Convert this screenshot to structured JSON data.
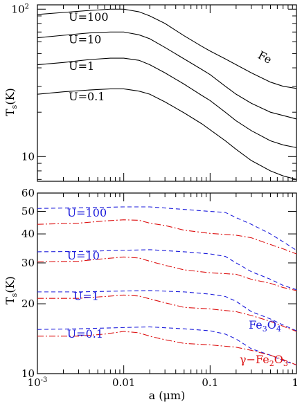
{
  "chart_data": [
    {
      "type": "line",
      "xscale": "log",
      "yscale": "log",
      "xlim": [
        0.001,
        1
      ],
      "ylim": [
        6.8,
        107
      ],
      "ylabel_main": "T",
      "ylabel_sub": "s",
      "ylabel_unit": "(K)",
      "yticks": [
        {
          "value": 10,
          "label": "10"
        },
        {
          "value": 100,
          "label": "10",
          "sup": "2"
        }
      ],
      "annotation": {
        "text": "Fe",
        "a": 0.35,
        "T": 47
      },
      "series": [
        {
          "name": "U=100",
          "color": "#000000",
          "dash": "solid",
          "x": [
            0.001,
            0.002,
            0.004,
            0.007,
            0.01,
            0.015,
            0.02,
            0.03,
            0.05,
            0.08,
            0.1,
            0.15,
            0.2,
            0.3,
            0.5,
            0.7,
            1.0
          ],
          "y": [
            92,
            95,
            98,
            100,
            100,
            96,
            90,
            80,
            66,
            56,
            52,
            46,
            42,
            37,
            32,
            30,
            29
          ]
        },
        {
          "name": "U=10",
          "color": "#000000",
          "dash": "solid",
          "x": [
            0.001,
            0.002,
            0.004,
            0.007,
            0.01,
            0.015,
            0.02,
            0.03,
            0.05,
            0.08,
            0.1,
            0.15,
            0.2,
            0.3,
            0.5,
            0.7,
            1.0
          ],
          "y": [
            64,
            66.5,
            69,
            70,
            70,
            67,
            63,
            55,
            46,
            39,
            36,
            30,
            26.5,
            23,
            20,
            19,
            18
          ]
        },
        {
          "name": "U=1",
          "color": "#000000",
          "dash": "solid",
          "x": [
            0.001,
            0.002,
            0.004,
            0.007,
            0.01,
            0.015,
            0.02,
            0.03,
            0.05,
            0.08,
            0.1,
            0.15,
            0.2,
            0.3,
            0.5,
            0.7,
            1.0
          ],
          "y": [
            42,
            43.5,
            45.5,
            46.5,
            46.5,
            45,
            42,
            37,
            31,
            26,
            24,
            20,
            17.5,
            15,
            12.8,
            12,
            11.5
          ]
        },
        {
          "name": "U=0.1",
          "color": "#000000",
          "dash": "solid",
          "x": [
            0.001,
            0.002,
            0.004,
            0.007,
            0.01,
            0.015,
            0.02,
            0.03,
            0.05,
            0.08,
            0.1,
            0.15,
            0.2,
            0.3,
            0.5,
            0.7,
            1.0
          ],
          "y": [
            26.5,
            27.5,
            28.3,
            28.8,
            28.8,
            27.8,
            26.5,
            23.5,
            19.8,
            16.7,
            15.2,
            12.8,
            11.2,
            9.4,
            8,
            7.4,
            7
          ]
        }
      ]
    },
    {
      "type": "line",
      "xscale": "log",
      "yscale": "log",
      "xlim": [
        0.001,
        1
      ],
      "ylim": [
        10,
        60
      ],
      "xlabel": "a (μm)",
      "ylabel_main": "T",
      "ylabel_sub": "s",
      "ylabel_unit": "(K)",
      "xticks": [
        {
          "value": 0.001,
          "label": "10",
          "sup": "-3"
        },
        {
          "value": 0.01,
          "label": "0.01"
        },
        {
          "value": 0.1,
          "label": "0.1"
        },
        {
          "value": 1,
          "label": "1"
        }
      ],
      "yticks": [
        {
          "value": 10,
          "label": "10"
        },
        {
          "value": 20,
          "label": "20"
        },
        {
          "value": 30,
          "label": "30"
        },
        {
          "value": 40,
          "label": "40"
        },
        {
          "value": 50,
          "label": "50"
        },
        {
          "value": 60,
          "label": "60"
        }
      ],
      "labels": [
        {
          "text": "U=100",
          "a": 0.0022,
          "T": 47.5,
          "color": "#1a1adb"
        },
        {
          "text": "U=10",
          "a": 0.0022,
          "T": 31,
          "color": "#1a1adb"
        },
        {
          "text": "U=1",
          "a": 0.0026,
          "T": 20.8,
          "color": "#1a1adb"
        },
        {
          "text": "U=0.1",
          "a": 0.0022,
          "T": 14.3,
          "color": "#1a1adb"
        }
      ],
      "annotations": [
        {
          "text": "Fe",
          "sub1": "3",
          "mid": "O",
          "sub2": "4",
          "a": 0.28,
          "T": 15.6,
          "color": "#1a1adb"
        },
        {
          "text": "γ−Fe",
          "sub1": "2",
          "mid": "O",
          "sub2": "3",
          "a": 0.22,
          "T": 11.1,
          "color": "#dd1111"
        }
      ],
      "series": [
        {
          "name": "Fe3O4 U=100",
          "color": "#1a1adb",
          "dash": "dashed",
          "x": [
            0.001,
            0.003,
            0.01,
            0.02,
            0.05,
            0.1,
            0.15,
            0.2,
            0.3,
            0.5,
            0.7,
            1.0
          ],
          "y": [
            51.5,
            51.8,
            52.3,
            52.3,
            51,
            50,
            49.5,
            47,
            44,
            40,
            37,
            34
          ]
        },
        {
          "name": "γ-Fe2O3 U=100",
          "color": "#dd1111",
          "dash": "dashdot",
          "x": [
            0.001,
            0.003,
            0.006,
            0.01,
            0.015,
            0.02,
            0.03,
            0.05,
            0.1,
            0.2,
            0.3,
            0.5,
            0.7,
            1.0
          ],
          "y": [
            44,
            44.5,
            45.5,
            46,
            45.8,
            44.5,
            43.5,
            41.5,
            40.2,
            39.5,
            38.5,
            36,
            34.5,
            32.8
          ]
        },
        {
          "name": "Fe3O4 U=10",
          "color": "#1a1adb",
          "dash": "dashed",
          "x": [
            0.001,
            0.003,
            0.01,
            0.02,
            0.05,
            0.1,
            0.15,
            0.2,
            0.3,
            0.5,
            0.7,
            1.0
          ],
          "y": [
            33.5,
            33.6,
            34,
            34.2,
            33.5,
            32.8,
            32,
            30,
            27.5,
            25.5,
            24,
            23
          ]
        },
        {
          "name": "γ-Fe2O3 U=10",
          "color": "#dd1111",
          "dash": "dashdot",
          "x": [
            0.001,
            0.003,
            0.006,
            0.01,
            0.015,
            0.02,
            0.03,
            0.05,
            0.1,
            0.2,
            0.3,
            0.5,
            0.7,
            1.0
          ],
          "y": [
            30.3,
            30.5,
            31.3,
            31.8,
            31.5,
            30.5,
            29.3,
            28,
            27.2,
            26.8,
            25.5,
            24.5,
            23.5,
            22.8
          ]
        },
        {
          "name": "Fe3O4 U=1",
          "color": "#1a1adb",
          "dash": "dashed",
          "x": [
            0.001,
            0.003,
            0.01,
            0.02,
            0.05,
            0.1,
            0.15,
            0.2,
            0.3,
            0.5,
            0.7,
            1.0
          ],
          "y": [
            22.5,
            22.5,
            22.7,
            22.8,
            22.5,
            22,
            21.5,
            20.5,
            18.5,
            17.2,
            16.2,
            15.3
          ]
        },
        {
          "name": "γ-Fe2O3 U=1",
          "color": "#dd1111",
          "dash": "dashdot",
          "x": [
            0.001,
            0.003,
            0.006,
            0.01,
            0.015,
            0.02,
            0.03,
            0.05,
            0.1,
            0.2,
            0.3,
            0.5,
            0.7,
            1.0
          ],
          "y": [
            21.1,
            21.1,
            21.5,
            21.8,
            21.6,
            21,
            20.2,
            19.3,
            19,
            18.5,
            17.8,
            16.8,
            16,
            15.2
          ]
        },
        {
          "name": "Fe3O4 U=0.1",
          "color": "#1a1adb",
          "dash": "dashed",
          "x": [
            0.001,
            0.003,
            0.01,
            0.02,
            0.05,
            0.1,
            0.15,
            0.2,
            0.3,
            0.5,
            0.7,
            1.0
          ],
          "y": [
            15.5,
            15.6,
            15.8,
            15.9,
            15.6,
            15.3,
            14.8,
            14.1,
            12.8,
            12,
            11.4,
            10.9
          ]
        },
        {
          "name": "γ-Fe2O3 U=0.1",
          "color": "#dd1111",
          "dash": "dashdot",
          "x": [
            0.001,
            0.003,
            0.006,
            0.01,
            0.015,
            0.02,
            0.03,
            0.05,
            0.1,
            0.2,
            0.3,
            0.5,
            0.7,
            1.0
          ],
          "y": [
            14.5,
            14.5,
            14.8,
            15.2,
            15,
            14.5,
            14,
            13.5,
            13.3,
            13,
            12.6,
            12,
            11.5,
            10.9
          ]
        }
      ]
    }
  ]
}
